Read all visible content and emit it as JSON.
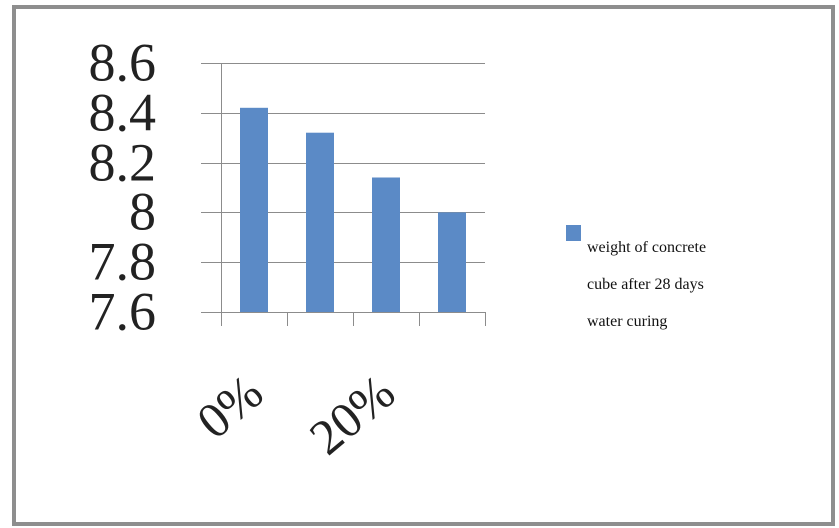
{
  "chart_data": {
    "type": "bar",
    "categories": [
      "0%",
      "",
      "20%",
      ""
    ],
    "series": [
      {
        "name": "weight of concrete cube after 28 days water curing",
        "values": [
          8.42,
          8.32,
          8.14,
          8.0
        ],
        "color": "#5b8ac6"
      }
    ],
    "ylim": [
      7.6,
      8.6
    ],
    "yticks": [
      "8.6",
      "8.4",
      "8.2",
      "8",
      "7.8",
      "7.6"
    ],
    "grid": true,
    "legend": {
      "position": "right",
      "lines": [
        "weight of concrete",
        "cube after 28 days",
        "water curing"
      ]
    },
    "title": "",
    "xlabel": "",
    "ylabel": ""
  }
}
